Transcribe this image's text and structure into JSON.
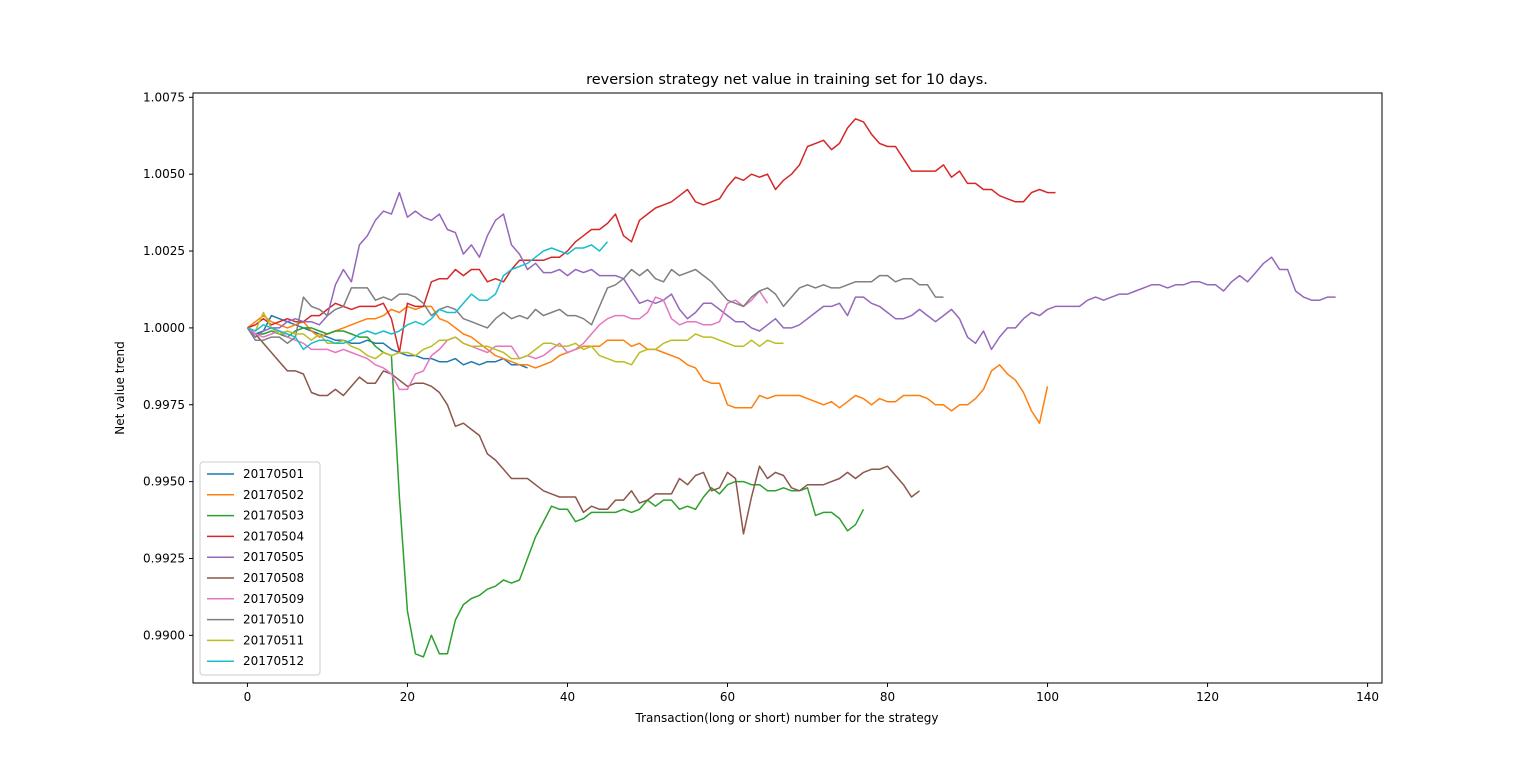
{
  "chart_data": {
    "type": "line",
    "title": "reversion strategy net value in training set for 10 days.",
    "xlabel": "Transaction(long or short) number for the strategy",
    "ylabel": "Net value trend",
    "xlim": [
      -6.8,
      141.8
    ],
    "ylim": [
      0.98845,
      1.00764
    ],
    "xticks": [
      0,
      20,
      40,
      60,
      80,
      100,
      120,
      140
    ],
    "yticks": [
      0.99,
      0.9925,
      0.995,
      0.9975,
      1.0,
      1.0025,
      1.005,
      1.0075
    ],
    "ytick_labels": [
      "0.9900",
      "0.9925",
      "0.9950",
      "0.9975",
      "1.0000",
      "1.0025",
      "1.0050",
      "1.0075"
    ],
    "legend_position": "lower-left",
    "grid": false,
    "series": [
      {
        "name": "20170501",
        "color": "#1f77b4",
        "values": [
          1.0,
          0.9998,
          0.9999,
          1.0004,
          1.0003,
          1.0002,
          1.0001,
          1.0,
          0.9999,
          0.9998,
          0.9997,
          0.9996,
          0.9996,
          0.9995,
          0.9995,
          0.9996,
          0.9995,
          0.9995,
          0.9993,
          0.9992,
          0.9991,
          0.9991,
          0.999,
          0.999,
          0.9989,
          0.9989,
          0.999,
          0.9988,
          0.9989,
          0.9988,
          0.9989,
          0.9989,
          0.999,
          0.9988,
          0.9988,
          0.9987
        ]
      },
      {
        "name": "20170502",
        "color": "#ff7f0e",
        "values": [
          1.0,
          1.0002,
          1.0004,
          1.0002,
          1.0001,
          1.0,
          1.0001,
          1.0002,
          0.9999,
          0.9997,
          0.9998,
          0.9999,
          1.0,
          1.0001,
          1.0002,
          1.0003,
          1.0003,
          1.0004,
          1.0006,
          1.0005,
          1.0007,
          1.0006,
          1.0007,
          1.0007,
          1.0003,
          1.0002,
          1.0,
          0.9998,
          0.9997,
          0.9995,
          0.9993,
          0.9991,
          0.999,
          0.9989,
          0.9988,
          0.9988,
          0.9987,
          0.9988,
          0.9989,
          0.9991,
          0.9992,
          0.9993,
          0.9994,
          0.9994,
          0.9994,
          0.9996,
          0.9996,
          0.9996,
          0.9994,
          0.9995,
          0.9993,
          0.9993,
          0.9992,
          0.9991,
          0.999,
          0.9988,
          0.9987,
          0.9983,
          0.9982,
          0.9982,
          0.9975,
          0.9974,
          0.9974,
          0.9974,
          0.9978,
          0.9977,
          0.9978,
          0.9978,
          0.9978,
          0.9978,
          0.9977,
          0.9976,
          0.9975,
          0.9976,
          0.9974,
          0.9976,
          0.9978,
          0.9977,
          0.9975,
          0.9977,
          0.9976,
          0.9976,
          0.9978,
          0.9978,
          0.9978,
          0.9977,
          0.9975,
          0.9975,
          0.9973,
          0.9975,
          0.9975,
          0.9977,
          0.998,
          0.9986,
          0.9988,
          0.9985,
          0.9983,
          0.9979,
          0.9973,
          0.9969,
          0.9981
        ]
      },
      {
        "name": "20170503",
        "color": "#2ca02c",
        "values": [
          1.0,
          0.9998,
          0.9998,
          0.9999,
          0.9998,
          0.9997,
          0.9999,
          1.0,
          1.0,
          0.9999,
          0.9998,
          0.9999,
          0.9999,
          0.9998,
          0.9997,
          0.9997,
          0.9994,
          0.9992,
          0.9991,
          0.9945,
          0.9908,
          0.9894,
          0.9893,
          0.99,
          0.9894,
          0.9894,
          0.9905,
          0.991,
          0.9912,
          0.9913,
          0.9915,
          0.9916,
          0.9918,
          0.9917,
          0.9918,
          0.9925,
          0.9932,
          0.9937,
          0.9942,
          0.9941,
          0.9941,
          0.9937,
          0.9938,
          0.994,
          0.994,
          0.994,
          0.994,
          0.9941,
          0.994,
          0.9941,
          0.9944,
          0.9942,
          0.9944,
          0.9944,
          0.9941,
          0.9942,
          0.9941,
          0.9945,
          0.9948,
          0.9946,
          0.9949,
          0.995,
          0.995,
          0.9949,
          0.9949,
          0.9947,
          0.9947,
          0.9948,
          0.9947,
          0.9947,
          0.9948,
          0.9939,
          0.994,
          0.994,
          0.9938,
          0.9934,
          0.9936,
          0.9941
        ]
      },
      {
        "name": "20170504",
        "color": "#d62728",
        "values": [
          1.0,
          1.0001,
          1.0003,
          1.0001,
          1.0002,
          1.0003,
          1.0002,
          1.0002,
          1.0004,
          1.0004,
          1.0006,
          1.0008,
          1.0007,
          1.0006,
          1.0007,
          1.0007,
          1.0007,
          1.0008,
          1.0003,
          0.9992,
          1.0008,
          1.0007,
          1.0007,
          1.0015,
          1.0016,
          1.0016,
          1.0019,
          1.0017,
          1.0019,
          1.0019,
          1.0015,
          1.0016,
          1.0015,
          1.0019,
          1.0022,
          1.0022,
          1.0022,
          1.0022,
          1.0023,
          1.0023,
          1.0025,
          1.0028,
          1.003,
          1.0032,
          1.0032,
          1.0034,
          1.0037,
          1.003,
          1.0028,
          1.0035,
          1.0037,
          1.0039,
          1.004,
          1.0041,
          1.0043,
          1.0045,
          1.0041,
          1.004,
          1.0041,
          1.0042,
          1.0046,
          1.0049,
          1.0048,
          1.005,
          1.0049,
          1.005,
          1.0045,
          1.0048,
          1.005,
          1.0053,
          1.0059,
          1.006,
          1.0061,
          1.0058,
          1.006,
          1.0065,
          1.0068,
          1.0067,
          1.0063,
          1.006,
          1.0059,
          1.0059,
          1.0055,
          1.0051,
          1.0051,
          1.0051,
          1.0051,
          1.0053,
          1.0049,
          1.0051,
          1.0047,
          1.0047,
          1.0045,
          1.0045,
          1.0043,
          1.0042,
          1.0041,
          1.0041,
          1.0044,
          1.0045,
          1.0044,
          1.0044
        ]
      },
      {
        "name": "20170505",
        "color": "#9467bd",
        "values": [
          1.0,
          0.9997,
          0.9999,
          1.0,
          1.0,
          1.0002,
          1.0003,
          1.0002,
          1.0002,
          1.0001,
          1.0004,
          1.0014,
          1.0019,
          1.0015,
          1.0027,
          1.003,
          1.0035,
          1.0038,
          1.0037,
          1.0044,
          1.0036,
          1.0038,
          1.0036,
          1.0035,
          1.0037,
          1.0032,
          1.0031,
          1.0024,
          1.0027,
          1.0023,
          1.003,
          1.0035,
          1.0037,
          1.0027,
          1.0024,
          1.0019,
          1.0021,
          1.0018,
          1.0018,
          1.0019,
          1.0017,
          1.0019,
          1.0018,
          1.0019,
          1.0017,
          1.0017,
          1.0017,
          1.0016,
          1.0012,
          1.0008,
          1.0009,
          1.0008,
          1.0009,
          1.0011,
          1.0006,
          1.0003,
          1.0005,
          1.0008,
          1.0008,
          1.0006,
          1.0004,
          1.0002,
          1.0002,
          1.0,
          0.9999,
          1.0001,
          1.0003,
          1.0,
          1.0,
          1.0001,
          1.0003,
          1.0005,
          1.0007,
          1.0007,
          1.0008,
          1.0004,
          1.001,
          1.001,
          1.0008,
          1.0007,
          1.0005,
          1.0003,
          1.0003,
          1.0004,
          1.0006,
          1.0004,
          1.0002,
          1.0004,
          1.0006,
          1.0003,
          0.9997,
          0.9995,
          0.9999,
          0.9993,
          0.9997,
          1.0,
          1.0,
          1.0003,
          1.0005,
          1.0004,
          1.0006,
          1.0007,
          1.0007,
          1.0007,
          1.0007,
          1.0009,
          1.001,
          1.0009,
          1.001,
          1.0011,
          1.0011,
          1.0012,
          1.0013,
          1.0014,
          1.0014,
          1.0013,
          1.0014,
          1.0014,
          1.0015,
          1.0015,
          1.0014,
          1.0014,
          1.0012,
          1.0015,
          1.0017,
          1.0015,
          1.0018,
          1.0021,
          1.0023,
          1.0019,
          1.0019,
          1.0012,
          1.001,
          1.0009,
          1.0009,
          1.001,
          1.001
        ]
      },
      {
        "name": "20170508",
        "color": "#8c564b",
        "values": [
          1.0,
          0.9998,
          0.9995,
          0.9992,
          0.9989,
          0.9986,
          0.9986,
          0.9985,
          0.9979,
          0.9978,
          0.9978,
          0.998,
          0.9978,
          0.9981,
          0.9984,
          0.9982,
          0.9982,
          0.9986,
          0.9985,
          0.9983,
          0.9981,
          0.9982,
          0.9982,
          0.9981,
          0.9979,
          0.9975,
          0.9968,
          0.9969,
          0.9967,
          0.9965,
          0.9959,
          0.9957,
          0.9954,
          0.9951,
          0.9951,
          0.9951,
          0.9949,
          0.9947,
          0.9946,
          0.9945,
          0.9945,
          0.9945,
          0.994,
          0.9942,
          0.9941,
          0.9941,
          0.9944,
          0.9944,
          0.9947,
          0.9943,
          0.9944,
          0.9946,
          0.9946,
          0.9946,
          0.9951,
          0.9949,
          0.9952,
          0.9953,
          0.9947,
          0.9948,
          0.9953,
          0.9951,
          0.9933,
          0.9945,
          0.9955,
          0.9951,
          0.9953,
          0.9952,
          0.9948,
          0.9947,
          0.9949,
          0.9949,
          0.9949,
          0.995,
          0.9951,
          0.9953,
          0.9951,
          0.9953,
          0.9954,
          0.9954,
          0.9955,
          0.9952,
          0.9949,
          0.9945,
          0.9947
        ]
      },
      {
        "name": "20170509",
        "color": "#e377c2",
        "values": [
          1.0,
          0.9998,
          0.9997,
          0.9998,
          0.9999,
          0.9997,
          0.9996,
          0.9995,
          0.9993,
          0.9993,
          0.9993,
          0.9992,
          0.9993,
          0.9992,
          0.9991,
          0.999,
          0.9988,
          0.9987,
          0.9985,
          0.998,
          0.998,
          0.9985,
          0.9986,
          0.9991,
          0.9993,
          0.9996,
          0.9997,
          0.9995,
          0.9994,
          0.9993,
          0.9992,
          0.9994,
          0.9994,
          0.9994,
          0.999,
          0.9991,
          0.999,
          0.9991,
          0.9993,
          0.9995,
          0.9992,
          0.9993,
          0.9995,
          0.9998,
          1.0001,
          1.0003,
          1.0004,
          1.0004,
          1.0003,
          1.0003,
          1.0005,
          1.001,
          1.0009,
          1.0003,
          1.0001,
          1.0002,
          1.0002,
          1.0001,
          1.0001,
          1.0002,
          1.0008,
          1.0009,
          1.0007,
          1.0009,
          1.0012,
          1.0008
        ]
      },
      {
        "name": "20170510",
        "color": "#7f7f7f",
        "values": [
          1.0,
          0.9996,
          0.9996,
          0.9997,
          0.9997,
          0.9995,
          0.9997,
          1.001,
          1.0007,
          1.0006,
          1.0004,
          1.0006,
          1.0007,
          1.0013,
          1.0013,
          1.0013,
          1.0009,
          1.001,
          1.0009,
          1.0011,
          1.0011,
          1.001,
          1.0008,
          1.0004,
          1.0006,
          1.0007,
          1.0006,
          1.0003,
          1.0002,
          1.0001,
          1.0,
          1.0003,
          1.0005,
          1.0003,
          1.0004,
          1.0003,
          1.0006,
          1.0004,
          1.0005,
          1.0006,
          1.0004,
          1.0004,
          1.0003,
          1.0001,
          1.0007,
          1.0013,
          1.0014,
          1.0016,
          1.0019,
          1.0017,
          1.0019,
          1.0016,
          1.0015,
          1.0019,
          1.0017,
          1.0018,
          1.0019,
          1.0017,
          1.0015,
          1.0012,
          1.0009,
          1.0008,
          1.0007,
          1.001,
          1.0012,
          1.0013,
          1.0011,
          1.0007,
          1.001,
          1.0013,
          1.0014,
          1.0013,
          1.0014,
          1.0013,
          1.0013,
          1.0014,
          1.0015,
          1.0015,
          1.0015,
          1.0017,
          1.0017,
          1.0015,
          1.0016,
          1.0016,
          1.0014,
          1.0014,
          1.001,
          1.001
        ]
      },
      {
        "name": "20170511",
        "color": "#bcbd22",
        "values": [
          1.0,
          0.9999,
          1.0005,
          1.0,
          0.9998,
          0.9999,
          0.9998,
          0.9998,
          0.9996,
          0.9998,
          0.9995,
          0.9995,
          0.9996,
          0.9994,
          0.9993,
          0.9991,
          0.999,
          0.9992,
          0.9991,
          0.9992,
          0.9992,
          0.9991,
          0.9993,
          0.9994,
          0.9996,
          0.9996,
          0.9997,
          0.9995,
          0.9994,
          0.9994,
          0.9994,
          0.9993,
          0.9992,
          0.999,
          0.999,
          0.9991,
          0.9993,
          0.9995,
          0.9995,
          0.9994,
          0.9994,
          0.9995,
          0.9993,
          0.9994,
          0.9991,
          0.999,
          0.9989,
          0.9989,
          0.9988,
          0.9992,
          0.9993,
          0.9993,
          0.9995,
          0.9996,
          0.9996,
          0.9996,
          0.9998,
          0.9997,
          0.9997,
          0.9996,
          0.9995,
          0.9994,
          0.9994,
          0.9996,
          0.9994,
          0.9996,
          0.9995,
          0.9995
        ]
      },
      {
        "name": "20170512",
        "color": "#17becf",
        "values": [
          1.0,
          0.9999,
          1.0001,
          1.0,
          0.9999,
          0.9998,
          0.9997,
          0.9993,
          0.9995,
          0.9996,
          0.9996,
          0.9995,
          0.9995,
          0.9996,
          0.9998,
          0.9999,
          0.9998,
          0.9999,
          0.9998,
          0.9999,
          1.0001,
          1.0002,
          1.0001,
          1.0003,
          1.0006,
          1.0005,
          1.0005,
          1.0008,
          1.0011,
          1.0009,
          1.0009,
          1.0011,
          1.0017,
          1.0019,
          1.002,
          1.0021,
          1.0023,
          1.0025,
          1.0026,
          1.0025,
          1.0024,
          1.0026,
          1.0026,
          1.0027,
          1.0025,
          1.0028
        ]
      }
    ]
  }
}
